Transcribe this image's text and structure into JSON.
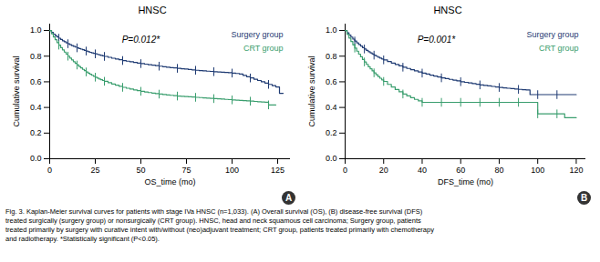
{
  "chart_data": [
    {
      "type": "step",
      "title": "HNSC",
      "panel_label": "A",
      "x_label": "OS_time (mo)",
      "y_label": "Cumulative survival",
      "annotations": [
        "P=0.012*"
      ],
      "xlim": [
        0,
        132
      ],
      "ylim": [
        0,
        1.05
      ],
      "xticks": [
        0,
        25,
        50,
        75,
        100,
        125
      ],
      "yticks": [
        {
          "value": 0,
          "label": "0.0"
        },
        0.2,
        0.4,
        0.6,
        0.8,
        {
          "value": 1.0,
          "label": "1.0"
        }
      ],
      "series": [
        {
          "name": "Surgery group",
          "color": "#1f3b73",
          "marker": "tick",
          "x": [
            0,
            1,
            2,
            3,
            4,
            5,
            6,
            7,
            8,
            9,
            10,
            11,
            12,
            13,
            14,
            15,
            16,
            17,
            18,
            19,
            20,
            21,
            22,
            23,
            24,
            25,
            26,
            27,
            28,
            29,
            30,
            32,
            34,
            36,
            38,
            40,
            42,
            44,
            46,
            48,
            50,
            52,
            54,
            56,
            58,
            60,
            62,
            64,
            66,
            68,
            70,
            72,
            74,
            76,
            78,
            80,
            82,
            84,
            86,
            88,
            90,
            92,
            94,
            96,
            98,
            100,
            102,
            104,
            106,
            108,
            110,
            112,
            114,
            116,
            118,
            120,
            122,
            124,
            126,
            128
          ],
          "values": [
            1.0,
            0.985,
            0.972,
            0.96,
            0.95,
            0.94,
            0.93,
            0.92,
            0.912,
            0.904,
            0.897,
            0.89,
            0.883,
            0.877,
            0.871,
            0.865,
            0.86,
            0.855,
            0.85,
            0.845,
            0.84,
            0.835,
            0.83,
            0.826,
            0.822,
            0.818,
            0.814,
            0.81,
            0.806,
            0.802,
            0.798,
            0.791,
            0.784,
            0.778,
            0.772,
            0.766,
            0.761,
            0.756,
            0.751,
            0.746,
            0.742,
            0.738,
            0.734,
            0.73,
            0.726,
            0.722,
            0.718,
            0.714,
            0.711,
            0.708,
            0.705,
            0.702,
            0.699,
            0.696,
            0.693,
            0.69,
            0.687,
            0.685,
            0.683,
            0.681,
            0.679,
            0.677,
            0.675,
            0.673,
            0.671,
            0.668,
            0.665,
            0.66,
            0.65,
            0.64,
            0.63,
            0.62,
            0.61,
            0.6,
            0.59,
            0.58,
            0.57,
            0.56,
            0.51,
            0.51
          ]
        },
        {
          "name": "CRT group",
          "color": "#3a9e6e",
          "marker": "tick",
          "x": [
            0,
            1,
            2,
            3,
            4,
            5,
            6,
            7,
            8,
            9,
            10,
            11,
            12,
            13,
            14,
            15,
            16,
            17,
            18,
            19,
            20,
            21,
            22,
            23,
            24,
            25,
            26,
            27,
            28,
            29,
            30,
            32,
            34,
            36,
            38,
            40,
            42,
            44,
            46,
            48,
            50,
            52,
            54,
            56,
            58,
            60,
            62,
            64,
            66,
            68,
            70,
            72,
            74,
            76,
            78,
            80,
            82,
            84,
            86,
            88,
            90,
            92,
            94,
            96,
            98,
            100,
            102,
            104,
            106,
            108,
            110,
            112,
            114,
            116,
            118,
            120,
            122,
            124
          ],
          "values": [
            1.0,
            0.975,
            0.95,
            0.928,
            0.906,
            0.886,
            0.867,
            0.849,
            0.832,
            0.816,
            0.8,
            0.785,
            0.771,
            0.757,
            0.744,
            0.731,
            0.719,
            0.708,
            0.697,
            0.687,
            0.677,
            0.668,
            0.659,
            0.651,
            0.643,
            0.636,
            0.629,
            0.622,
            0.616,
            0.61,
            0.604,
            0.593,
            0.583,
            0.574,
            0.565,
            0.557,
            0.55,
            0.543,
            0.537,
            0.531,
            0.526,
            0.521,
            0.516,
            0.512,
            0.508,
            0.504,
            0.501,
            0.498,
            0.495,
            0.492,
            0.489,
            0.487,
            0.485,
            0.483,
            0.481,
            0.479,
            0.477,
            0.475,
            0.473,
            0.471,
            0.469,
            0.467,
            0.465,
            0.463,
            0.461,
            0.459,
            0.457,
            0.455,
            0.453,
            0.451,
            0.449,
            0.447,
            0.445,
            0.443,
            0.441,
            0.42,
            0.42,
            0.42
          ]
        }
      ]
    },
    {
      "type": "step",
      "title": "HNSC",
      "panel_label": "B",
      "x_label": "DFS_time (mo)",
      "y_label": "Cumulative survival",
      "annotations": [
        "P=0.001*"
      ],
      "xlim": [
        0,
        125
      ],
      "ylim": [
        0,
        1.05
      ],
      "xticks": [
        0,
        20,
        40,
        60,
        80,
        100,
        120
      ],
      "yticks": [
        {
          "value": 0,
          "label": "0.0"
        },
        0.2,
        0.4,
        0.6,
        0.8,
        {
          "value": 1.0,
          "label": "1.0"
        }
      ],
      "series": [
        {
          "name": "Surgery group",
          "color": "#1f3b73",
          "marker": "tick",
          "x": [
            0,
            1,
            2,
            3,
            4,
            5,
            6,
            7,
            8,
            9,
            10,
            11,
            12,
            13,
            14,
            15,
            16,
            17,
            18,
            19,
            20,
            22,
            24,
            26,
            28,
            30,
            32,
            34,
            36,
            38,
            40,
            42,
            44,
            46,
            48,
            50,
            52,
            54,
            56,
            58,
            60,
            62,
            64,
            66,
            68,
            70,
            72,
            74,
            76,
            78,
            80,
            82,
            84,
            86,
            88,
            90,
            92,
            94,
            96,
            98,
            100,
            102,
            104,
            106,
            108,
            110,
            112,
            114,
            116,
            118,
            120
          ],
          "values": [
            1.0,
            0.982,
            0.965,
            0.949,
            0.933,
            0.918,
            0.904,
            0.891,
            0.879,
            0.867,
            0.856,
            0.845,
            0.835,
            0.826,
            0.817,
            0.808,
            0.8,
            0.792,
            0.785,
            0.778,
            0.771,
            0.758,
            0.746,
            0.735,
            0.724,
            0.714,
            0.704,
            0.694,
            0.685,
            0.676,
            0.668,
            0.66,
            0.652,
            0.645,
            0.638,
            0.631,
            0.625,
            0.619,
            0.613,
            0.607,
            0.601,
            0.596,
            0.591,
            0.586,
            0.581,
            0.576,
            0.572,
            0.568,
            0.564,
            0.56,
            0.556,
            0.553,
            0.55,
            0.547,
            0.544,
            0.541,
            0.538,
            0.536,
            0.5,
            0.5,
            0.5,
            0.5,
            0.5,
            0.5,
            0.5,
            0.5,
            0.5,
            0.5,
            0.5,
            0.5,
            0.5
          ]
        },
        {
          "name": "CRT group",
          "color": "#3a9e6e",
          "marker": "tick",
          "x": [
            0,
            1,
            2,
            3,
            4,
            5,
            6,
            7,
            8,
            9,
            10,
            11,
            12,
            13,
            14,
            15,
            16,
            17,
            18,
            19,
            20,
            22,
            24,
            26,
            28,
            30,
            32,
            34,
            36,
            38,
            40,
            42,
            44,
            46,
            48,
            50,
            52,
            54,
            56,
            58,
            60,
            62,
            64,
            66,
            68,
            70,
            72,
            74,
            76,
            78,
            80,
            82,
            84,
            86,
            88,
            90,
            92,
            94,
            96,
            98,
            100,
            102,
            104,
            106,
            108,
            110,
            112,
            114,
            116,
            118,
            120
          ],
          "values": [
            1.0,
            0.97,
            0.941,
            0.914,
            0.888,
            0.863,
            0.839,
            0.816,
            0.795,
            0.774,
            0.755,
            0.736,
            0.718,
            0.701,
            0.685,
            0.67,
            0.655,
            0.641,
            0.628,
            0.615,
            0.603,
            0.58,
            0.559,
            0.54,
            0.522,
            0.505,
            0.49,
            0.476,
            0.463,
            0.451,
            0.44,
            0.44,
            0.44,
            0.44,
            0.44,
            0.44,
            0.44,
            0.44,
            0.44,
            0.44,
            0.44,
            0.44,
            0.44,
            0.44,
            0.44,
            0.44,
            0.44,
            0.44,
            0.44,
            0.44,
            0.44,
            0.44,
            0.44,
            0.44,
            0.44,
            0.44,
            0.44,
            0.44,
            0.44,
            0.44,
            0.35,
            0.35,
            0.35,
            0.35,
            0.35,
            0.35,
            0.35,
            0.32,
            0.32,
            0.32,
            0.32
          ]
        }
      ]
    }
  ],
  "caption": [
    "Fig. 3. Kaplan-Meier survival curves for patients with stage IVa HNSC (n=1,033). (A) Overall survival (OS), (B) disease-free survival (DFS)",
    "treated surgically (surgery group) or nonsurgically (CRT group). HNSC, head and neck squamous cell carcinoma; Surgery group, patients",
    "treated primarily by surgery with curative intent with/without (neo)adjuvant treatment; CRT group, patients treated primarily with chemotherapy",
    "and radiotherapy. *Statistically significant (P<0.05)."
  ]
}
